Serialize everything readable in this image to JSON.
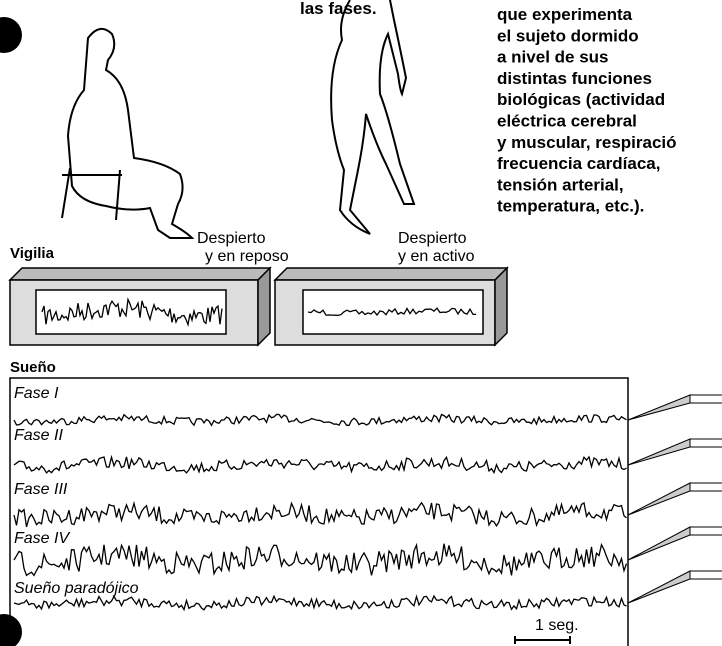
{
  "header": {
    "caption": "las fases."
  },
  "text_column": {
    "lines": [
      "que experimenta",
      "el sujeto dormido",
      "a nivel de sus",
      "distintas funciones",
      "biológicas (actividad",
      "eléctrica cerebral",
      "y muscular, respiració",
      "frecuencia cardíaca,",
      "tensión arterial,",
      "temperatura, etc.)."
    ]
  },
  "wakefulness": {
    "label": "Vigilia",
    "states": [
      {
        "line1": "Despierto",
        "line2": "y en reposo"
      },
      {
        "line1": "Despierto",
        "line2": "y en activo"
      }
    ]
  },
  "sleep": {
    "label": "Sueño",
    "phases": [
      "Fase I",
      "Fase II",
      "Fase III",
      "Fase IV",
      "Sueño paradójico"
    ],
    "scale": "1 seg."
  }
}
